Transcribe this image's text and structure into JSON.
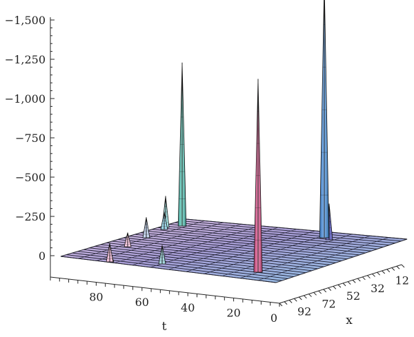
{
  "chart_data": {
    "type": "surface3d",
    "xlabel": "x",
    "ylabel": "t",
    "zlabel": "",
    "z_ticks": [
      "0",
      "−250",
      "−500",
      "−750",
      "−1,000",
      "−1,250",
      "−1,500"
    ],
    "z_tick_values": [
      0,
      -250,
      -500,
      -750,
      -1000,
      -1250,
      -1500
    ],
    "t_ticks": [
      "0",
      "20",
      "40",
      "60",
      "80"
    ],
    "t_tick_values": [
      0,
      20,
      40,
      60,
      80
    ],
    "x_ticks": [
      "92",
      "72",
      "52",
      "32",
      "12"
    ],
    "x_tick_values": [
      92,
      72,
      52,
      32,
      12
    ],
    "zlim": [
      0,
      -1600
    ],
    "tlim": [
      0,
      100
    ],
    "xlim": [
      100,
      0
    ],
    "grid": false,
    "peaks": [
      {
        "t": 0,
        "x": 12,
        "z": -1630
      },
      {
        "t": 0,
        "x": 50,
        "z": -1230
      },
      {
        "t": 45,
        "x": 12,
        "z": -1040
      },
      {
        "t": 0,
        "x": 12,
        "z": -230
      },
      {
        "t": 45,
        "x": 60,
        "z": -120
      },
      {
        "t": 45,
        "x": 82,
        "z": -120
      },
      {
        "t": 65,
        "x": 35,
        "z": -110
      },
      {
        "t": 70,
        "x": 55,
        "z": -130
      },
      {
        "t": 70,
        "x": 75,
        "z": -90
      },
      {
        "t": 90,
        "x": 65,
        "z": -60
      },
      {
        "t": 90,
        "x": 80,
        "z": -200
      }
    ]
  }
}
